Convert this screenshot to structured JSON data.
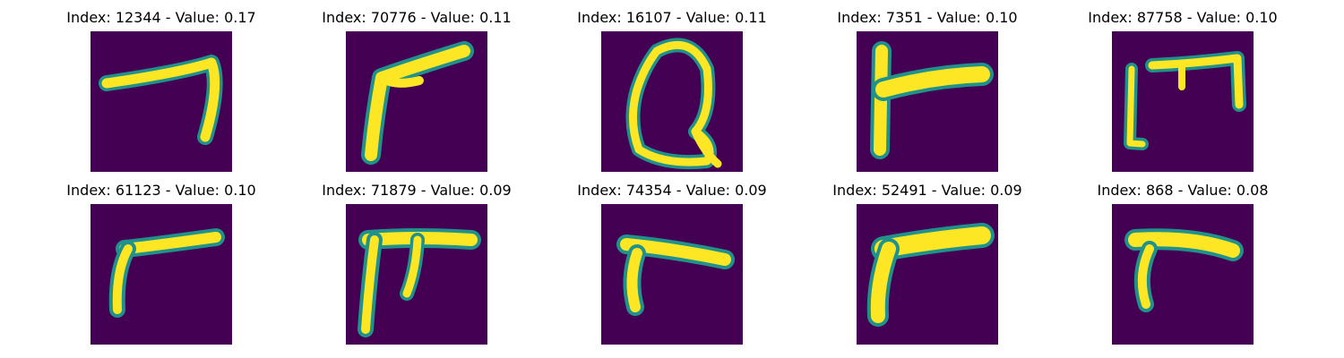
{
  "colors": {
    "background": "#440154",
    "stroke_mid": "#21918c",
    "stroke_edge": "#5ec962",
    "stroke_core": "#fde725"
  },
  "panels": [
    {
      "index_label": "Index: 12344 - Value: 0.17",
      "glyph": "stroke-7-shape"
    },
    {
      "index_label": "Index: 70776 - Value: 0.11",
      "glyph": "stroke-angle-shape"
    },
    {
      "index_label": "Index: 16107 - Value: 0.11",
      "glyph": "stroke-loop-shape"
    },
    {
      "index_label": "Index: 7351 - Value: 0.10",
      "glyph": "stroke-t-shape"
    },
    {
      "index_label": "Index: 87758 - Value: 0.10",
      "glyph": "stroke-bracket-shape"
    },
    {
      "index_label": "Index: 61123 - Value: 0.10",
      "glyph": "stroke-r-shape"
    },
    {
      "index_label": "Index: 71879 - Value: 0.09",
      "glyph": "stroke-pi-shape"
    },
    {
      "index_label": "Index: 74354 - Value: 0.09",
      "glyph": "stroke-r-shape"
    },
    {
      "index_label": "Index: 52491 - Value: 0.09",
      "glyph": "stroke-r-shape"
    },
    {
      "index_label": "Index: 868 - Value: 0.08",
      "glyph": "stroke-r-shape"
    }
  ]
}
